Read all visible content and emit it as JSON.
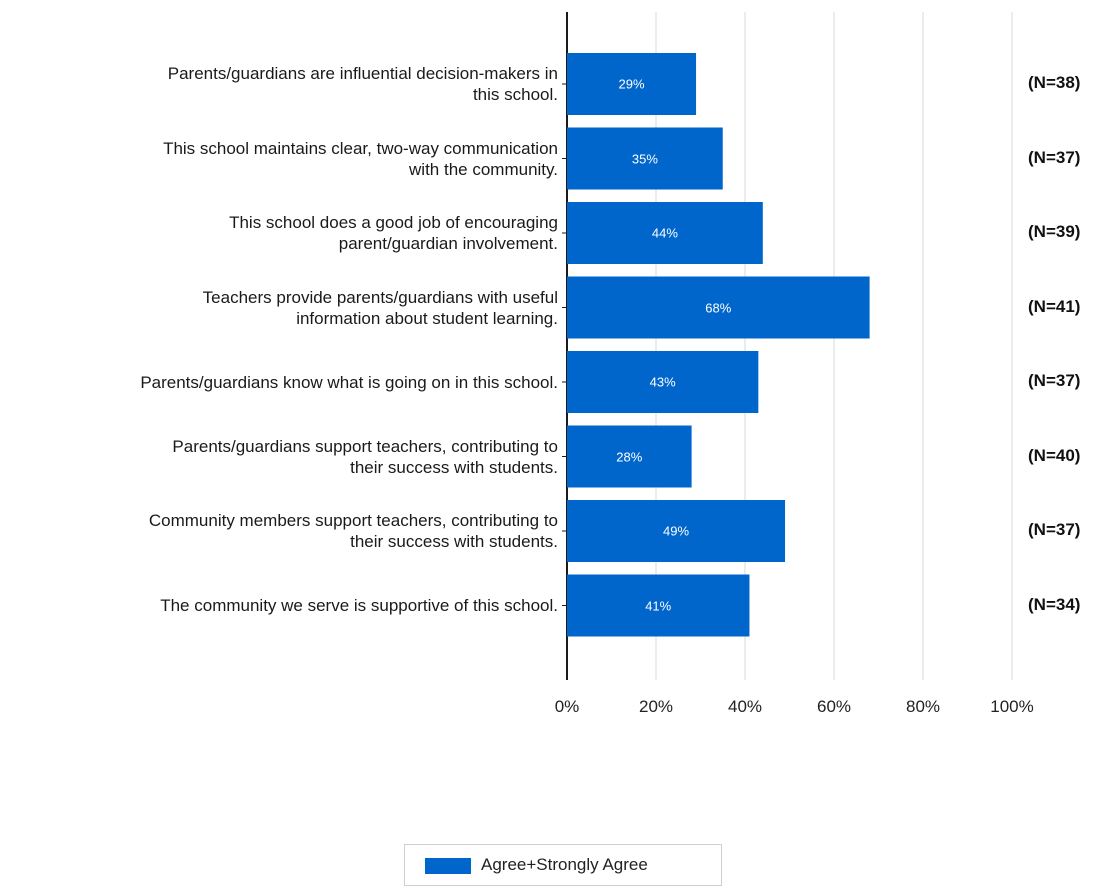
{
  "chart_data": {
    "type": "bar",
    "orientation": "horizontal",
    "categories": [
      "Parents/guardians are influential decision-makers in\nthis school.",
      "This school maintains clear, two-way communication\nwith the community.",
      "This school does a good job of encouraging\nparent/guardian involvement.",
      "Teachers provide parents/guardians with useful\ninformation about student learning.",
      "Parents/guardians know what is going on in this school.",
      "Parents/guardians support teachers, contributing to\ntheir success with students.",
      "Community members support teachers, contributing to\ntheir success with students.",
      "The community we serve is supportive of this school."
    ],
    "series": [
      {
        "name": "Agree+Strongly Agree",
        "values": [
          29,
          35,
          44,
          68,
          43,
          28,
          49,
          41
        ]
      }
    ],
    "data_labels": [
      "29%",
      "35%",
      "44%",
      "68%",
      "43%",
      "28%",
      "49%",
      "41%"
    ],
    "n_labels": [
      "(N=38)",
      "(N=37)",
      "(N=39)",
      "(N=41)",
      "(N=37)",
      "(N=40)",
      "(N=37)",
      "(N=34)"
    ],
    "x_ticks": [
      "0%",
      "20%",
      "40%",
      "60%",
      "80%",
      "100%"
    ],
    "xlim": [
      0,
      100
    ],
    "grid": "vertical",
    "legend_position": "bottom-center",
    "bar_color": "#0066cc"
  }
}
